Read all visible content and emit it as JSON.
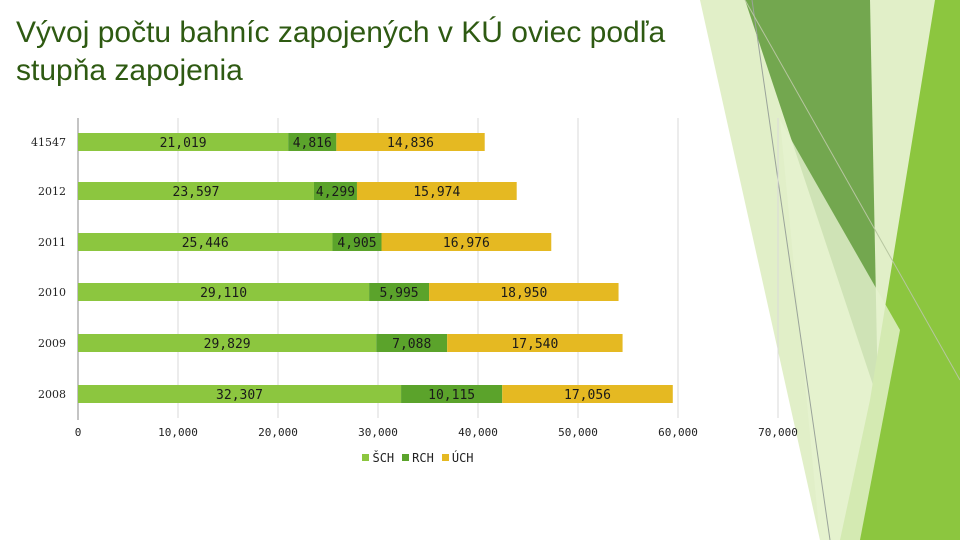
{
  "slide": {
    "title_lines": [
      "Vývoj počtu bahníc zapojených v KÚ oviec podľa",
      "stupňa zapojenia"
    ]
  },
  "colors": {
    "title": "#2e5a12",
    "deco_dark": "#5f9a3a",
    "deco_mid": "#8cc63f",
    "deco_light": "#c9e29a"
  },
  "chart_data": {
    "type": "bar",
    "orientation": "horizontal",
    "stacked": true,
    "categories": [
      "41547",
      "2012",
      "2011",
      "2010",
      "2009",
      "2008"
    ],
    "series": [
      {
        "name": "ŠCH",
        "color": "#8cc63f",
        "values": [
          21019,
          23597,
          25446,
          29110,
          29829,
          32307
        ],
        "labels": [
          "21,019",
          "23,597",
          "25,446",
          "29,110",
          "29,829",
          "32,307"
        ]
      },
      {
        "name": "RCH",
        "color": "#5ba32b",
        "values": [
          4816,
          4299,
          4905,
          5995,
          7088,
          10115
        ],
        "labels": [
          "4,816",
          "4,299",
          "4,905",
          "5,995",
          "7,088",
          "10,115"
        ]
      },
      {
        "name": "ÚCH",
        "color": "#e5b922",
        "values": [
          14836,
          15974,
          16976,
          18950,
          17540,
          17056
        ],
        "labels": [
          "14,836",
          "15,974",
          "16,976",
          "18,950",
          "17,540",
          "17,056"
        ]
      }
    ],
    "xlim": [
      0,
      70000
    ],
    "xticks": [
      0,
      10000,
      20000,
      30000,
      40000,
      50000,
      60000,
      70000
    ],
    "xtick_labels": [
      "0",
      "10,000",
      "20,000",
      "30,000",
      "40,000",
      "50,000",
      "60,000",
      "70,000"
    ],
    "grid": true,
    "legend": "bottom"
  }
}
